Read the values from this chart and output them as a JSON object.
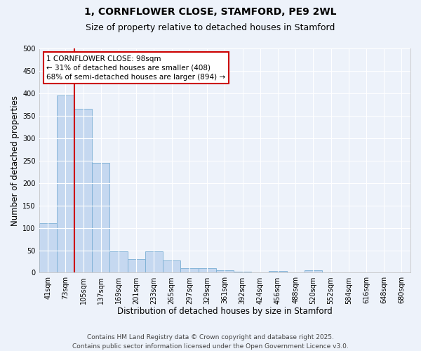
{
  "title": "1, CORNFLOWER CLOSE, STAMFORD, PE9 2WL",
  "subtitle": "Size of property relative to detached houses in Stamford",
  "xlabel": "Distribution of detached houses by size in Stamford",
  "ylabel": "Number of detached properties",
  "footer_line1": "Contains HM Land Registry data © Crown copyright and database right 2025.",
  "footer_line2": "Contains public sector information licensed under the Open Government Licence v3.0.",
  "categories": [
    "41sqm",
    "73sqm",
    "105sqm",
    "137sqm",
    "169sqm",
    "201sqm",
    "233sqm",
    "265sqm",
    "297sqm",
    "329sqm",
    "361sqm",
    "392sqm",
    "424sqm",
    "456sqm",
    "488sqm",
    "520sqm",
    "552sqm",
    "584sqm",
    "616sqm",
    "648sqm",
    "680sqm"
  ],
  "values": [
    110,
    395,
    365,
    245,
    47,
    30,
    47,
    28,
    10,
    10,
    5,
    3,
    1,
    4,
    1,
    5,
    1,
    1,
    0,
    1,
    0
  ],
  "bar_color": "#c5d8f0",
  "bar_edge_color": "#7aafd4",
  "vline_x": 1.5,
  "vline_color": "#cc0000",
  "annotation_text": "1 CORNFLOWER CLOSE: 98sqm\n← 31% of detached houses are smaller (408)\n68% of semi-detached houses are larger (894) →",
  "annotation_box_facecolor": "#ffffff",
  "annotation_box_edgecolor": "#cc0000",
  "ylim": [
    0,
    500
  ],
  "yticks": [
    0,
    50,
    100,
    150,
    200,
    250,
    300,
    350,
    400,
    450,
    500
  ],
  "background_color": "#edf2fa",
  "plot_background_color": "#edf2fa",
  "grid_color": "#ffffff",
  "title_fontsize": 10,
  "subtitle_fontsize": 9,
  "xlabel_fontsize": 8.5,
  "ylabel_fontsize": 8.5,
  "tick_fontsize": 7,
  "annot_fontsize": 7.5,
  "footer_fontsize": 6.5
}
